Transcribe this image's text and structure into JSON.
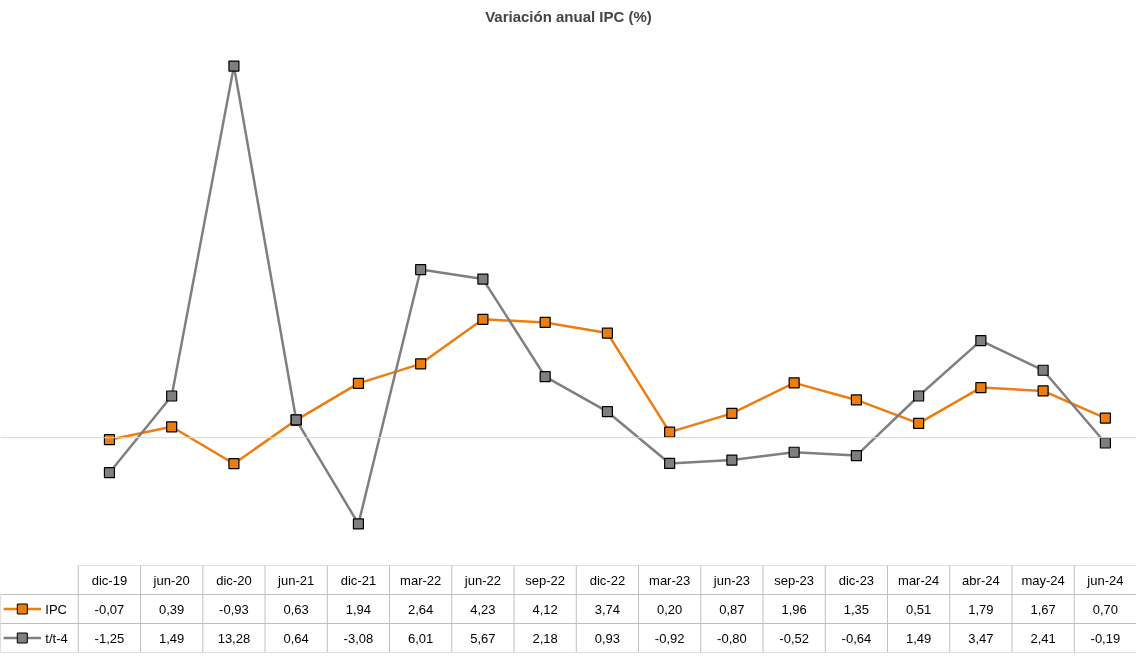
{
  "chart_data": {
    "type": "line",
    "title": "Variación anual IPC (%)",
    "categories": [
      "dic-19",
      "jun-20",
      "dic-20",
      "jun-21",
      "dic-21",
      "mar-22",
      "jun-22",
      "sep-22",
      "dic-22",
      "mar-23",
      "jun-23",
      "sep-23",
      "dic-23",
      "mar-24",
      "abr-24",
      "may-24",
      "jun-24"
    ],
    "series": [
      {
        "name": "IPC",
        "color": "#ed7d0f",
        "marker": "square",
        "values": [
          -0.07,
          0.39,
          -0.93,
          0.63,
          1.94,
          2.64,
          4.23,
          4.12,
          3.74,
          0.2,
          0.87,
          1.96,
          1.35,
          0.51,
          1.79,
          1.67,
          0.7
        ],
        "value_labels": [
          "-0,07",
          "0,39",
          "-0,93",
          "0,63",
          "1,94",
          "2,64",
          "4,23",
          "4,12",
          "3,74",
          "0,20",
          "0,87",
          "1,96",
          "1,35",
          "0,51",
          "1,79",
          "1,67",
          "0,70"
        ]
      },
      {
        "name": "t/t-4",
        "color": "#7f7f7f",
        "marker": "square",
        "values": [
          -1.25,
          1.49,
          13.28,
          0.64,
          -3.08,
          6.01,
          5.67,
          2.18,
          0.93,
          -0.92,
          -0.8,
          -0.52,
          -0.64,
          1.49,
          3.47,
          2.41,
          -0.19
        ],
        "value_labels": [
          "-1,25",
          "1,49",
          "13,28",
          "0,64",
          "-3,08",
          "6,01",
          "5,67",
          "2,18",
          "0,93",
          "-0,92",
          "-0,80",
          "-0,52",
          "-0,64",
          "1,49",
          "3,47",
          "2,41",
          "-0,19"
        ]
      }
    ],
    "legend": "bottom",
    "grid": false
  }
}
